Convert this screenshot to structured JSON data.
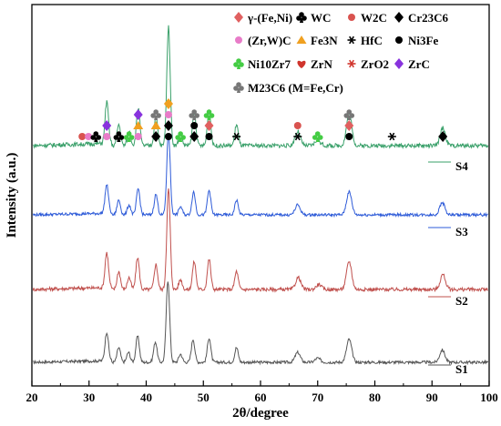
{
  "chart_data": {
    "type": "line",
    "xlabel": "2θ/degree",
    "ylabel": "Intensity (a.u.)",
    "xlim": [
      20,
      100
    ],
    "xticks": [
      20,
      30,
      40,
      50,
      60,
      70,
      80,
      90,
      100
    ],
    "grid": false,
    "legend_position": "top-right",
    "legend": [
      {
        "symbol": "diamond",
        "color": "#e06060",
        "label": "γ-(Fe,Ni)"
      },
      {
        "symbol": "club",
        "color": "#000000",
        "label": "WC"
      },
      {
        "symbol": "circle",
        "color": "#d9534f",
        "label": "W2C"
      },
      {
        "symbol": "diamond",
        "color": "#000000",
        "label": "Cr23C6"
      },
      {
        "symbol": "circle",
        "color": "#e87cc8",
        "label": "(Zr,W)C"
      },
      {
        "symbol": "triangle",
        "color": "#f0a020",
        "label": "Fe3N"
      },
      {
        "symbol": "asterisk",
        "color": "#000000",
        "label": "HfC"
      },
      {
        "symbol": "circle",
        "color": "#000000",
        "label": "Ni3Fe"
      },
      {
        "symbol": "club",
        "color": "#44cc44",
        "label": "Ni10Zr7"
      },
      {
        "symbol": "heart",
        "color": "#d0342c",
        "label": "ZrN"
      },
      {
        "symbol": "asterisk",
        "color": "#d0342c",
        "label": "ZrO2"
      },
      {
        "symbol": "diamond",
        "color": "#8833dd",
        "label": "ZrC"
      },
      {
        "symbol": "club",
        "color": "#777777",
        "label": "M23C6 (M=Fe,Cr)"
      }
    ],
    "series": [
      {
        "name": "S1",
        "color": "#555555",
        "peaks": [
          33.1,
          35.2,
          36.9,
          38.5,
          41.6,
          43.8,
          46.0,
          48.2,
          51.0,
          55.8,
          66.5,
          70.0,
          75.5,
          91.8
        ]
      },
      {
        "name": "S2",
        "color": "#c0504d",
        "peaks": [
          33.1,
          35.2,
          37.0,
          38.5,
          41.7,
          43.9,
          46.0,
          48.4,
          51.0,
          55.8,
          66.6,
          70.2,
          75.5,
          91.9
        ]
      },
      {
        "name": "S3",
        "color": "#2e5bd8",
        "peaks": [
          33.1,
          35.2,
          37.0,
          38.6,
          41.7,
          43.9,
          46.0,
          48.3,
          51.0,
          55.8,
          66.5,
          75.5,
          91.8
        ]
      },
      {
        "name": "S4",
        "color": "#3aa06a",
        "peaks": [
          33.1,
          35.2,
          37.0,
          38.6,
          41.7,
          43.9,
          46.0,
          48.4,
          51.0,
          55.8,
          66.5,
          70.0,
          75.5,
          91.9
        ]
      }
    ]
  }
}
